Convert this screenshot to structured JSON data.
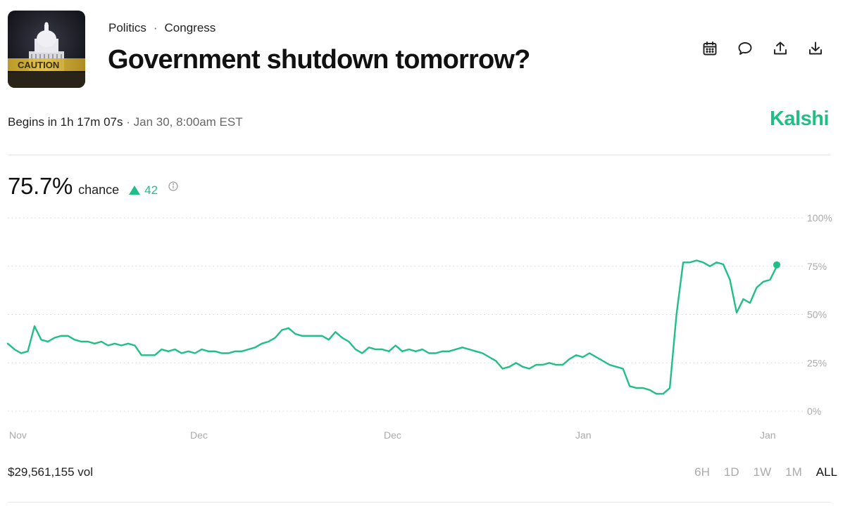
{
  "market": {
    "category": "Politics",
    "subcategory": "Congress",
    "title": "Government shutdown tomorrow?",
    "thumbnail_caption": "CAUTION"
  },
  "actions": {
    "calendar": "calendar-icon",
    "comment": "comment-icon",
    "share": "share-icon",
    "download": "download-icon"
  },
  "timing": {
    "begins_label": "Begins in 1h 17m 07s",
    "separator": "·",
    "date": "Jan 30, 8:00am EST"
  },
  "brand": "Kalshi",
  "odds": {
    "percent": "75.7%",
    "label": "chance",
    "delta": "42"
  },
  "footer": {
    "volume": "$29,561,155 vol",
    "ranges": [
      "6H",
      "1D",
      "1W",
      "1M",
      "ALL"
    ],
    "active_range": "ALL"
  },
  "colors": {
    "accent": "#1fbf86",
    "grid": "#d4d4d4",
    "axis_text": "#aaaaaa"
  },
  "chart_data": {
    "type": "line",
    "y_unit": "%",
    "ylim": [
      0,
      100
    ],
    "y_ticks": [
      "100%",
      "75%",
      "50%",
      "25%",
      "0%"
    ],
    "y_tick_values": [
      100,
      75,
      50,
      25,
      0
    ],
    "x_tick_labels": [
      "Nov",
      "Dec",
      "Dec",
      "Jan",
      "Jan"
    ],
    "grid": "horizontal dotted",
    "series": [
      {
        "values": [
          35,
          32,
          30,
          31,
          44,
          37,
          36,
          38,
          39,
          39,
          37,
          36,
          36,
          35,
          36,
          34,
          35,
          34,
          35,
          34,
          29,
          29,
          29,
          32,
          31,
          32,
          30,
          31,
          30,
          32,
          31,
          31,
          30,
          30,
          31,
          31,
          32,
          33,
          35,
          36,
          38,
          42,
          43,
          40,
          39,
          39,
          39,
          39,
          37,
          41,
          38,
          36,
          32,
          30,
          33,
          32,
          32,
          31,
          34,
          31,
          32,
          31,
          32,
          30,
          30,
          31,
          31,
          32,
          33,
          32,
          31,
          30,
          28,
          26,
          22,
          23,
          25,
          23,
          22,
          24,
          24,
          25,
          24,
          24,
          27,
          29,
          28,
          30,
          28,
          26,
          24,
          23,
          22,
          13,
          12,
          12,
          11,
          9,
          9,
          12,
          50,
          77,
          77,
          78,
          77,
          75,
          77,
          76,
          68,
          51,
          58,
          56,
          64,
          67,
          68,
          75
        ]
      }
    ],
    "last_value": 75.7
  }
}
